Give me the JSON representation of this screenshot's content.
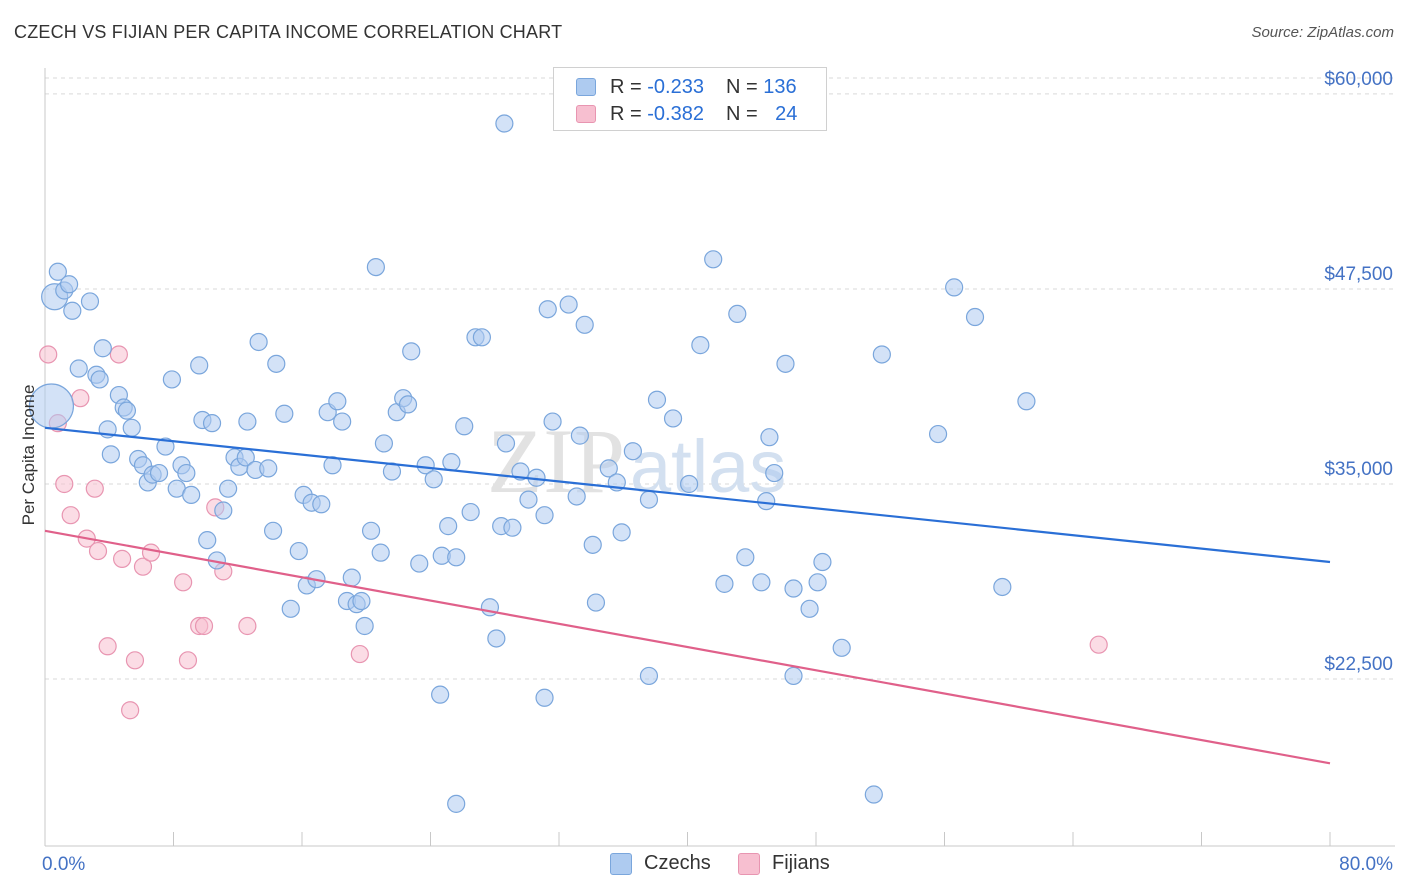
{
  "title": "CZECH VS FIJIAN PER CAPITA INCOME CORRELATION CHART",
  "source": "Source: ZipAtlas.com",
  "watermark": {
    "zip": "ZIP",
    "atlas": "atlas"
  },
  "legend": {
    "r_label": "R = ",
    "n_label": "N = ",
    "rows": [
      {
        "r": "-0.233",
        "n": "136"
      },
      {
        "r": "-0.382",
        "n": "24"
      }
    ]
  },
  "colors": {
    "czech_fill": "#aecbf0",
    "czech_stroke": "#7aa6dc",
    "czech_line": "#2a6fd6",
    "fijian_fill": "#f7bfd0",
    "fijian_stroke": "#e895b1",
    "fijian_line": "#e0608a",
    "axis_text": "#4472c4",
    "grid": "#d9d9d9"
  },
  "chart_data": {
    "type": "scatter",
    "title": "CZECH VS FIJIAN PER CAPITA INCOME CORRELATION CHART",
    "xlabel": "",
    "ylabel": "Per Capita Income",
    "xlim": [
      0,
      80
    ],
    "ylim": [
      11800,
      62300
    ],
    "x_tick_labels": [
      "0.0%",
      "80.0%"
    ],
    "y_ticks": [
      {
        "value": 22500,
        "label": "$22,500"
      },
      {
        "value": 35000,
        "label": "$35,000"
      },
      {
        "value": 47500,
        "label": "$47,500"
      },
      {
        "value": 60000,
        "label": "$60,000"
      }
    ],
    "series": [
      {
        "name": "Czechs",
        "r": -0.233,
        "n": 136,
        "trend": {
          "x": [
            0,
            80
          ],
          "y": [
            38600,
            30000
          ]
        },
        "points": [
          [
            0.4,
            40000,
            3
          ],
          [
            0.6,
            47000,
            2
          ],
          [
            0.8,
            48600,
            1
          ],
          [
            1.2,
            47400,
            1
          ],
          [
            1.5,
            47800,
            1
          ],
          [
            1.7,
            46100,
            1
          ],
          [
            2.1,
            42400,
            1
          ],
          [
            2.8,
            46700,
            1
          ],
          [
            3.2,
            42000,
            1
          ],
          [
            3.4,
            41700,
            1
          ],
          [
            3.6,
            43700,
            1
          ],
          [
            3.9,
            38500,
            1
          ],
          [
            4.1,
            36900,
            1
          ],
          [
            4.6,
            40700,
            1
          ],
          [
            4.9,
            39900,
            1
          ],
          [
            5.1,
            39700,
            1
          ],
          [
            5.4,
            38600,
            1
          ],
          [
            5.8,
            36600,
            1
          ],
          [
            6.1,
            36200,
            1
          ],
          [
            6.4,
            35100,
            1
          ],
          [
            6.7,
            35600,
            1
          ],
          [
            7.1,
            35700,
            1
          ],
          [
            7.5,
            37400,
            1
          ],
          [
            7.9,
            41700,
            1
          ],
          [
            8.2,
            34700,
            1
          ],
          [
            8.5,
            36200,
            1
          ],
          [
            8.8,
            35700,
            1
          ],
          [
            9.1,
            34300,
            1
          ],
          [
            9.6,
            42600,
            1
          ],
          [
            9.8,
            39100,
            1
          ],
          [
            10.1,
            31400,
            1
          ],
          [
            10.4,
            38900,
            1
          ],
          [
            10.7,
            30100,
            1
          ],
          [
            11.1,
            33300,
            1
          ],
          [
            11.4,
            34700,
            1
          ],
          [
            11.8,
            36700,
            1
          ],
          [
            12.1,
            36100,
            1
          ],
          [
            12.5,
            36700,
            1
          ],
          [
            12.6,
            39000,
            1
          ],
          [
            13.1,
            35900,
            1
          ],
          [
            13.3,
            44100,
            1
          ],
          [
            13.9,
            36000,
            1
          ],
          [
            14.2,
            32000,
            1
          ],
          [
            14.4,
            42700,
            1
          ],
          [
            14.9,
            39500,
            1
          ],
          [
            15.3,
            27000,
            1
          ],
          [
            15.8,
            30700,
            1
          ],
          [
            16.1,
            34300,
            1
          ],
          [
            16.3,
            28500,
            1
          ],
          [
            16.6,
            33800,
            1
          ],
          [
            16.9,
            28900,
            1
          ],
          [
            17.2,
            33700,
            1
          ],
          [
            17.6,
            39600,
            1
          ],
          [
            17.9,
            36200,
            1
          ],
          [
            18.2,
            40300,
            1
          ],
          [
            18.5,
            39000,
            1
          ],
          [
            18.8,
            27500,
            1
          ],
          [
            19.1,
            29000,
            1
          ],
          [
            19.4,
            27300,
            1
          ],
          [
            19.7,
            27500,
            1
          ],
          [
            19.9,
            25900,
            1
          ],
          [
            20.3,
            32000,
            1
          ],
          [
            20.6,
            48900,
            1
          ],
          [
            20.9,
            30600,
            1
          ],
          [
            21.1,
            37600,
            1
          ],
          [
            21.6,
            35800,
            1
          ],
          [
            21.9,
            39600,
            1
          ],
          [
            22.3,
            40500,
            1
          ],
          [
            22.6,
            40100,
            1
          ],
          [
            22.8,
            43500,
            1
          ],
          [
            23.3,
            29900,
            1
          ],
          [
            23.7,
            36200,
            1
          ],
          [
            24.2,
            35300,
            1
          ],
          [
            24.7,
            30400,
            1
          ],
          [
            25.1,
            32300,
            1
          ],
          [
            25.3,
            36400,
            1
          ],
          [
            25.6,
            30300,
            1
          ],
          [
            26.1,
            38700,
            1
          ],
          [
            26.5,
            33200,
            1
          ],
          [
            26.8,
            44400,
            1
          ],
          [
            27.2,
            44400,
            1
          ],
          [
            27.7,
            27100,
            1
          ],
          [
            28.1,
            25100,
            1
          ],
          [
            28.4,
            32300,
            1
          ],
          [
            28.7,
            37600,
            1
          ],
          [
            29.1,
            32200,
            1
          ],
          [
            29.6,
            35800,
            1
          ],
          [
            30.1,
            34000,
            1
          ],
          [
            30.6,
            35400,
            1
          ],
          [
            31.1,
            33000,
            1
          ],
          [
            31.3,
            46200,
            1
          ],
          [
            31.6,
            39000,
            1
          ],
          [
            32.6,
            46500,
            1
          ],
          [
            33.1,
            34200,
            1
          ],
          [
            33.3,
            38100,
            1
          ],
          [
            33.6,
            45200,
            1
          ],
          [
            34.1,
            31100,
            1
          ],
          [
            34.3,
            27400,
            1
          ],
          [
            35.1,
            36000,
            1
          ],
          [
            35.6,
            35100,
            1
          ],
          [
            35.9,
            31900,
            1
          ],
          [
            36.6,
            37100,
            1
          ],
          [
            37.6,
            34000,
            1
          ],
          [
            38.1,
            40400,
            1
          ],
          [
            39.1,
            39200,
            1
          ],
          [
            40.1,
            35000,
            1
          ],
          [
            40.8,
            43900,
            1
          ],
          [
            41.6,
            49400,
            1
          ],
          [
            42.3,
            28600,
            1
          ],
          [
            43.1,
            45900,
            1
          ],
          [
            43.6,
            30300,
            1
          ],
          [
            44.6,
            28700,
            1
          ],
          [
            44.9,
            33900,
            1
          ],
          [
            45.1,
            38000,
            1
          ],
          [
            45.4,
            35700,
            1
          ],
          [
            46.1,
            42700,
            1
          ],
          [
            46.6,
            28300,
            1
          ],
          [
            47.6,
            27000,
            1
          ],
          [
            48.1,
            28700,
            1
          ],
          [
            48.4,
            30000,
            1
          ],
          [
            49.6,
            24500,
            1
          ],
          [
            52.1,
            43300,
            1
          ],
          [
            55.6,
            38200,
            1
          ],
          [
            56.6,
            47600,
            1
          ],
          [
            57.9,
            45700,
            1
          ],
          [
            59.6,
            28400,
            1
          ],
          [
            61.1,
            40300,
            1
          ],
          [
            51.6,
            15100,
            1
          ],
          [
            24.6,
            21500,
            1
          ],
          [
            25.6,
            14500,
            1
          ],
          [
            31.1,
            21300,
            1
          ],
          [
            37.6,
            22700,
            1
          ],
          [
            46.6,
            22700,
            1
          ],
          [
            28.6,
            58100,
            1
          ]
        ]
      },
      {
        "name": "Fijians",
        "r": -0.382,
        "n": 24,
        "trend": {
          "x": [
            0,
            80
          ],
          "y": [
            32000,
            17100
          ]
        },
        "points": [
          [
            0.2,
            43300,
            1
          ],
          [
            0.8,
            38900,
            1
          ],
          [
            1.2,
            35000,
            1
          ],
          [
            1.6,
            33000,
            1
          ],
          [
            2.2,
            40500,
            1
          ],
          [
            2.6,
            31500,
            1
          ],
          [
            3.1,
            34700,
            1
          ],
          [
            3.3,
            30700,
            1
          ],
          [
            3.9,
            24600,
            1
          ],
          [
            4.6,
            43300,
            1
          ],
          [
            4.8,
            30200,
            1
          ],
          [
            5.3,
            20500,
            1
          ],
          [
            5.6,
            23700,
            1
          ],
          [
            6.1,
            29700,
            1
          ],
          [
            6.6,
            30600,
            1
          ],
          [
            8.6,
            28700,
            1
          ],
          [
            8.9,
            23700,
            1
          ],
          [
            9.6,
            25900,
            1
          ],
          [
            9.9,
            25900,
            1
          ],
          [
            10.6,
            33500,
            1
          ],
          [
            11.1,
            29400,
            1
          ],
          [
            12.6,
            25900,
            1
          ],
          [
            19.6,
            24100,
            1
          ],
          [
            65.6,
            24700,
            1
          ]
        ]
      }
    ]
  }
}
